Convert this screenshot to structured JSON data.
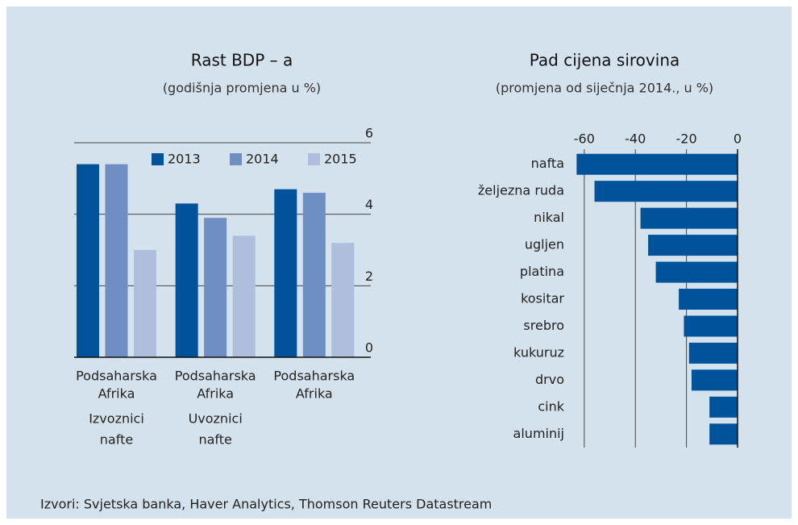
{
  "chart_data": [
    {
      "type": "bar",
      "title": "Rast BDP – a",
      "subtitle": "(godišnja promjena u %)",
      "categories": [
        [
          "Podsaharska",
          "Afrika",
          "Izvoznici",
          "nafte"
        ],
        [
          "Podsaharska",
          "Afrika",
          "Uvoznici",
          "nafte"
        ],
        [
          "Podsaharska",
          "Afrika"
        ]
      ],
      "series": [
        {
          "name": "2013",
          "color": "#00539b",
          "values": [
            5.4,
            4.3,
            4.7
          ]
        },
        {
          "name": "2014",
          "color": "#6f8fc3",
          "values": [
            5.4,
            3.9,
            4.6
          ]
        },
        {
          "name": "2015",
          "color": "#afbedc",
          "values": [
            3.0,
            3.4,
            3.2
          ]
        }
      ],
      "ylim": [
        0,
        6
      ],
      "yticks": [
        0,
        2,
        4,
        6
      ],
      "grid": true,
      "legend": "top"
    },
    {
      "type": "hbar",
      "title": "Pad cijena sirovina",
      "subtitle": "(promjena od siječnja 2014., u %)",
      "categories": [
        "nafta",
        "željezna ruda",
        "nikal",
        "ugljen",
        "platina",
        "kositar",
        "srebro",
        "kukuruz",
        "drvo",
        "cink",
        "aluminij"
      ],
      "values": [
        -63,
        -56,
        -38,
        -35,
        -32,
        -23,
        -21,
        -19,
        -18,
        -11,
        -11
      ],
      "color": "#00539b",
      "xlim": [
        -65,
        0
      ],
      "xticks": [
        -60,
        -40,
        -20,
        0
      ],
      "grid": true
    }
  ],
  "source": "Izvori: Svjetska banka, Haver Analytics, Thomson Reuters Datastream"
}
